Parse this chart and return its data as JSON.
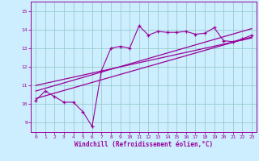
{
  "xlabel": "Windchill (Refroidissement éolien,°C)",
  "bg_color": "#cceeff",
  "line_color": "#990099",
  "grid_color": "#99cccc",
  "xlim": [
    -0.5,
    23.5
  ],
  "ylim": [
    8.5,
    15.5
  ],
  "xticks": [
    0,
    1,
    2,
    3,
    4,
    5,
    6,
    7,
    8,
    9,
    10,
    11,
    12,
    13,
    14,
    15,
    16,
    17,
    18,
    19,
    20,
    21,
    22,
    23
  ],
  "yticks": [
    9,
    10,
    11,
    12,
    13,
    14,
    15
  ],
  "series1_x": [
    0,
    1,
    2,
    3,
    4,
    5,
    6,
    7,
    8,
    9,
    10,
    11,
    12,
    13,
    14,
    15,
    16,
    17,
    18,
    19,
    20,
    21,
    22,
    23
  ],
  "series1_y": [
    10.2,
    10.7,
    10.4,
    10.1,
    10.1,
    9.6,
    8.8,
    11.8,
    13.0,
    13.1,
    13.0,
    14.2,
    13.7,
    13.9,
    13.85,
    13.85,
    13.9,
    13.75,
    13.8,
    14.1,
    13.4,
    13.35,
    13.5,
    13.7
  ],
  "line1_x": [
    0,
    23
  ],
  "line1_y": [
    10.3,
    13.6
  ],
  "line2_x": [
    0,
    23
  ],
  "line2_y": [
    10.7,
    14.05
  ],
  "line3_x": [
    0,
    23
  ],
  "line3_y": [
    11.0,
    13.55
  ]
}
